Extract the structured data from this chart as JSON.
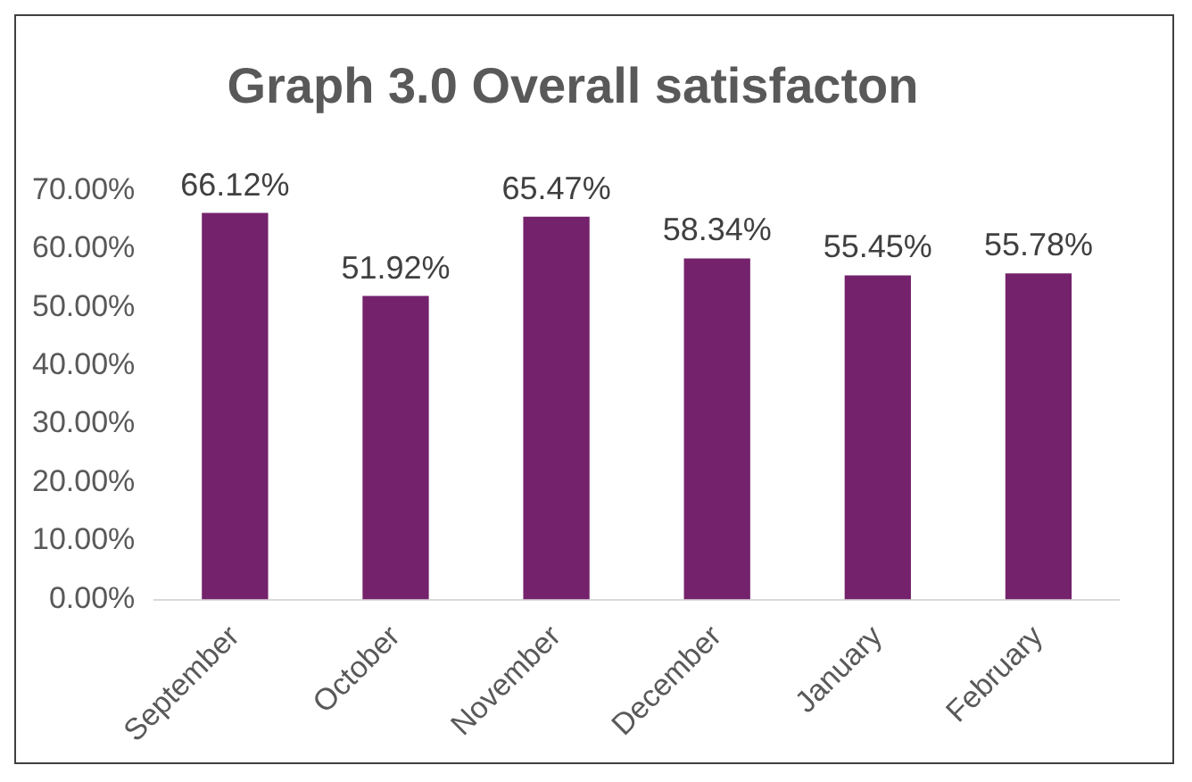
{
  "chart_data": {
    "type": "bar",
    "title": "Graph 3.0 Overall satisfacton",
    "categories": [
      "September",
      "October",
      "November",
      "December",
      "January",
      "February"
    ],
    "values": [
      66.12,
      51.92,
      65.47,
      58.34,
      55.45,
      55.78
    ],
    "value_labels": [
      "66.12%",
      "51.92%",
      "65.47%",
      "58.34%",
      "55.45%",
      "55.78%"
    ],
    "color": "#74226c",
    "ylim": [
      0,
      70
    ],
    "yticks": [
      {
        "value": 0,
        "label": "0.00%"
      },
      {
        "value": 10,
        "label": "10.00%"
      },
      {
        "value": 20,
        "label": "20.00%"
      },
      {
        "value": 30,
        "label": "30.00%"
      },
      {
        "value": 40,
        "label": "40.00%"
      },
      {
        "value": 50,
        "label": "50.00%"
      },
      {
        "value": 60,
        "label": "60.00%"
      },
      {
        "value": 70,
        "label": "70.00%"
      }
    ],
    "grid": false,
    "legend": false
  }
}
